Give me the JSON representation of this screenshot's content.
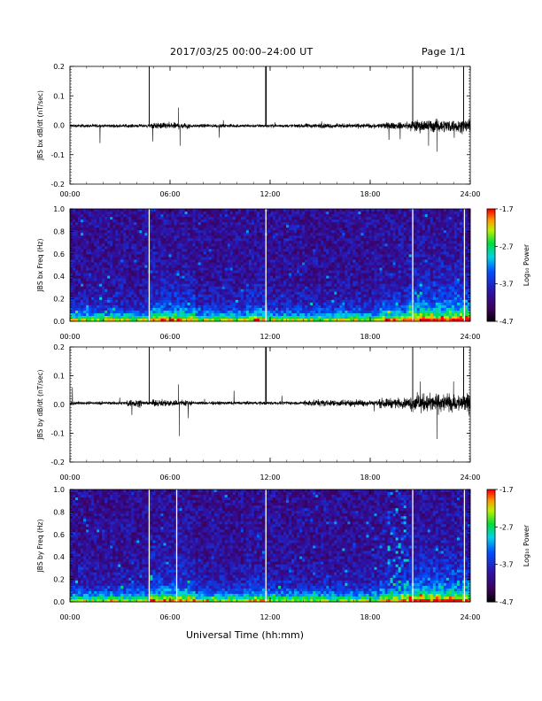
{
  "header": {
    "title": "2017/03/25  00:00–24:00 UT",
    "page": "Page 1/1"
  },
  "x_axis_title": "Universal Time (hh:mm)",
  "chart_data": [
    {
      "type": "line",
      "ylabel": "JBS bx dB/dt (nT/sec)",
      "ylim": [
        -0.2,
        0.2
      ],
      "yticks": [
        "0.2",
        "0.1",
        "0.0",
        "-0.1",
        "-0.2"
      ],
      "xlim": [
        0,
        24
      ],
      "xticks": [
        "00:00",
        "06:00",
        "12:00",
        "18:00",
        "24:00"
      ],
      "series": [
        {
          "x": [
            0,
            2,
            4,
            4.75,
            4.8,
            5.5,
            6,
            6.5,
            6.6,
            7,
            8,
            10,
            11.5,
            11.75,
            11.8,
            12,
            14,
            16,
            18,
            20,
            20.5,
            20.55,
            21,
            21.5,
            22,
            23,
            23.6,
            23.65,
            24
          ],
          "y": [
            0.0,
            0.01,
            0.01,
            0.2,
            0.0,
            0.01,
            0.02,
            0.06,
            -0.07,
            0.02,
            0.01,
            0.01,
            0.01,
            0.2,
            0.0,
            0.01,
            0.01,
            0.01,
            0.02,
            0.03,
            0.05,
            0.2,
            0.05,
            -0.07,
            -0.09,
            0.05,
            0.2,
            0.0,
            0.02
          ]
        }
      ]
    },
    {
      "type": "heatmap",
      "ylabel": "JBS bx Freq (Hz)",
      "ylim": [
        0,
        1
      ],
      "yticks": [
        "1.0",
        "0.8",
        "0.6",
        "0.4",
        "0.2",
        "0.0"
      ],
      "xlim": [
        0,
        24
      ],
      "xticks": [
        "00:00",
        "06:00",
        "12:00",
        "18:00",
        "24:00"
      ],
      "colorbar": {
        "label": "Log₁₀ Power",
        "ticks": [
          "-1.7",
          "-2.7",
          "-3.7",
          "-4.7"
        ],
        "range": [
          -4.7,
          -1.7
        ]
      },
      "data_gap_hours": [
        4.75,
        11.75,
        20.55,
        23.65
      ]
    },
    {
      "type": "line",
      "ylabel": "JBS by dB/dt (nT/sec)",
      "ylim": [
        -0.2,
        0.2
      ],
      "yticks": [
        "0.2",
        "0.1",
        "0.0",
        "-0.1",
        "-0.2"
      ],
      "xlim": [
        0,
        24
      ],
      "xticks": [
        "00:00",
        "06:00",
        "12:00",
        "18:00",
        "24:00"
      ],
      "series": [
        {
          "x": [
            0,
            2,
            3.5,
            4,
            4.75,
            4.8,
            5.5,
            6.5,
            6.55,
            7,
            8,
            10,
            11.5,
            11.75,
            11.8,
            12,
            14,
            16,
            18,
            19.5,
            20.5,
            20.55,
            21,
            22,
            23,
            23.6,
            23.65,
            24
          ],
          "y": [
            0.01,
            0.01,
            0.05,
            -0.04,
            0.2,
            0.0,
            0.01,
            0.07,
            -0.11,
            0.02,
            0.01,
            0.01,
            0.01,
            0.2,
            0.0,
            0.02,
            0.02,
            0.03,
            0.04,
            0.02,
            0.04,
            0.2,
            0.08,
            -0.12,
            0.08,
            0.2,
            0.0,
            0.03
          ]
        }
      ]
    },
    {
      "type": "heatmap",
      "ylabel": "JBS by Freq (Hz)",
      "ylim": [
        0,
        1
      ],
      "yticks": [
        "1.0",
        "0.8",
        "0.6",
        "0.4",
        "0.2",
        "0.0"
      ],
      "xlim": [
        0,
        24
      ],
      "xticks": [
        "00:00",
        "06:00",
        "12:00",
        "18:00",
        "24:00"
      ],
      "colorbar": {
        "label": "Log₁₀ Power",
        "ticks": [
          "-1.7",
          "-2.7",
          "-3.7",
          "-4.7"
        ],
        "range": [
          -4.7,
          -1.7
        ]
      },
      "data_gap_hours": [
        4.75,
        6.4,
        11.75,
        20.55,
        23.65
      ]
    }
  ]
}
